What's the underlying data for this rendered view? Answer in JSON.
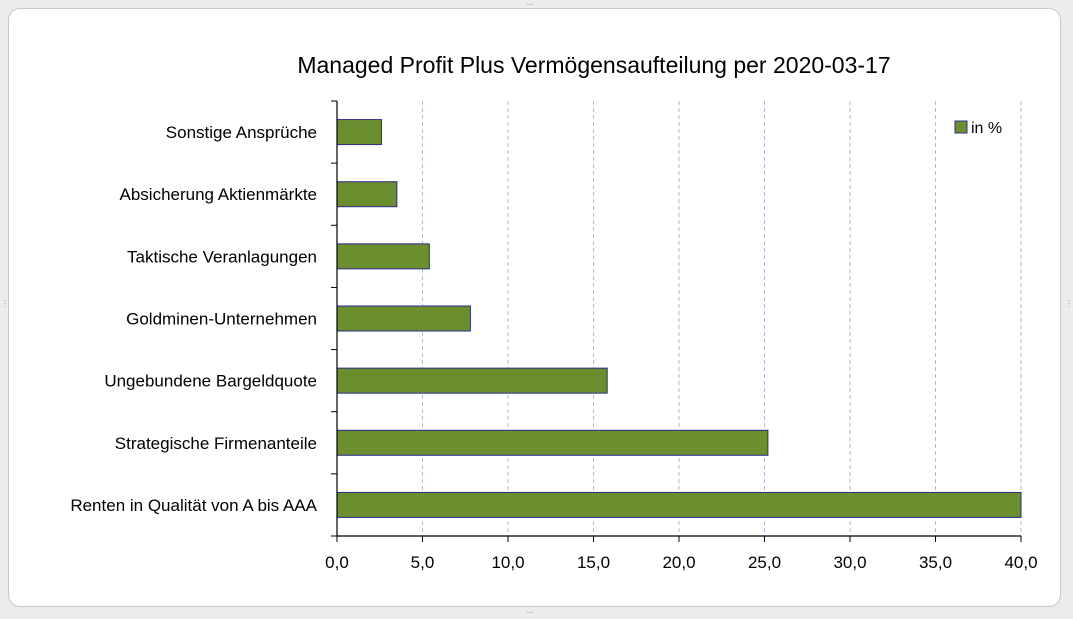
{
  "chart_data": {
    "type": "bar",
    "orientation": "horizontal",
    "title": "Managed Profit Plus Vermögensaufteilung per 2020-03-17",
    "categories": [
      "Sonstige Ansprüche",
      "Absicherung Aktienmärkte",
      "Taktische Veranlagungen",
      "Goldminen-Unternehmen",
      "Ungebundene Bargeldquote",
      "Strategische Firmenanteile",
      "Renten in Qualität von A bis AAA"
    ],
    "series": [
      {
        "name": "in %",
        "values": [
          2.6,
          3.5,
          5.4,
          7.8,
          15.8,
          25.2,
          40.0
        ]
      }
    ],
    "xlim": [
      0,
      40
    ],
    "xticks": [
      "0,0",
      "5,0",
      "10,0",
      "15,0",
      "20,0",
      "25,0",
      "30,0",
      "35,0",
      "40,0"
    ],
    "grid": "vertical dashed",
    "legend_position": "top-right",
    "colors": {
      "bar_fill": "#6b8e2e",
      "bar_stroke": "#2b2b8c",
      "grid": "#a9bcd6",
      "axis": "#000000"
    }
  }
}
